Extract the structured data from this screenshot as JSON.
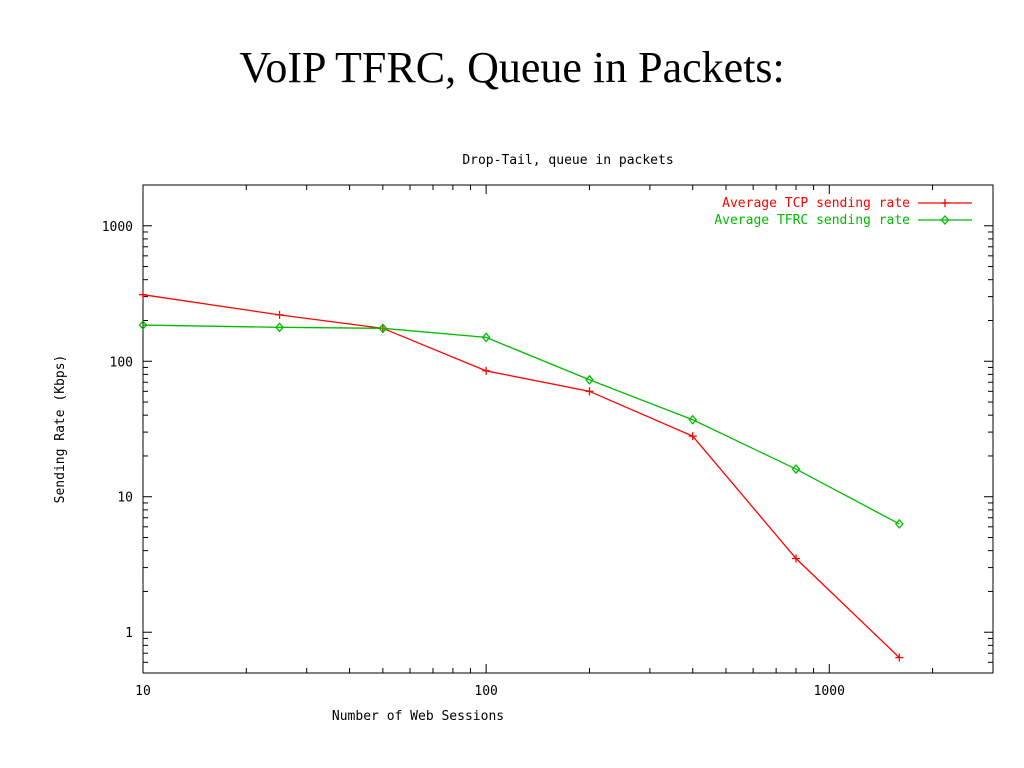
{
  "slide": {
    "title": "VoIP TFRC, Queue in Packets:"
  },
  "colors": {
    "tcp": "#ff0000",
    "tfrc": "#00bb00",
    "axis": "#000000",
    "text": "#000000"
  },
  "chart_data": {
    "type": "line",
    "title": "Drop-Tail, queue in packets",
    "xlabel": "Number of Web Sessions",
    "ylabel": "Sending Rate (Kbps)",
    "xscale": "log",
    "yscale": "log",
    "xlim": [
      10,
      3000
    ],
    "ylim": [
      0.5,
      2000
    ],
    "grid": false,
    "legend_position": "top-right",
    "x_ticks": [
      {
        "value": 10,
        "label": "10"
      },
      {
        "value": 100,
        "label": "100"
      },
      {
        "value": 1000,
        "label": "1000"
      }
    ],
    "y_ticks": [
      {
        "value": 1,
        "label": "1"
      },
      {
        "value": 10,
        "label": "10"
      },
      {
        "value": 100,
        "label": "100"
      },
      {
        "value": 1000,
        "label": "1000"
      }
    ],
    "series": [
      {
        "name": "Average TCP sending rate",
        "color": "#ff0000",
        "marker": "plus",
        "x": [
          10,
          25,
          50,
          100,
          200,
          400,
          800,
          1600
        ],
        "y": [
          310,
          220,
          175,
          85,
          60,
          28,
          3.5,
          0.65
        ]
      },
      {
        "name": "Average TFRC sending rate",
        "color": "#00bb00",
        "marker": "diamond",
        "x": [
          10,
          25,
          50,
          100,
          200,
          400,
          800,
          1600
        ],
        "y": [
          185,
          178,
          175,
          150,
          73,
          37,
          16,
          6.3
        ]
      }
    ]
  }
}
